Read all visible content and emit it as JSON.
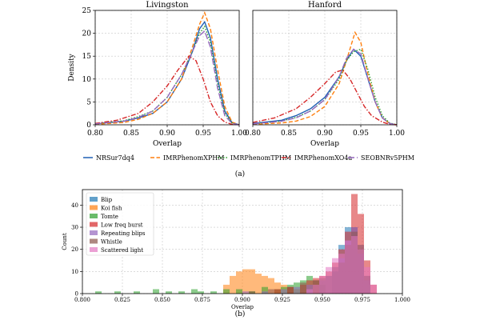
{
  "chart_data": [
    {
      "type": "line",
      "subplot": "Livingston",
      "title": "Livingston",
      "xlabel": "Overlap",
      "ylabel": "Density",
      "xlim": [
        0.8,
        1.0
      ],
      "ylim": [
        0,
        25
      ],
      "xticks": [
        "0.80",
        "0.85",
        "0.90",
        "0.95",
        "1.00"
      ],
      "yticks": [
        "0",
        "5",
        "10",
        "15",
        "20",
        "25"
      ],
      "grid": true,
      "series": [
        {
          "name": "NRSur7dq4",
          "color": "#1f5fb4",
          "dash": "",
          "x": [
            0.8,
            0.84,
            0.86,
            0.88,
            0.9,
            0.92,
            0.935,
            0.945,
            0.952,
            0.96,
            0.97,
            0.98,
            0.99,
            1.0
          ],
          "y": [
            0.2,
            0.8,
            1.5,
            2.5,
            5,
            10,
            16,
            21,
            22.5,
            19,
            10,
            3,
            0.5,
            0
          ]
        },
        {
          "name": "IMRPhenomXPHM",
          "color": "#ff7f0e",
          "dash": "5,2.5",
          "x": [
            0.8,
            0.84,
            0.86,
            0.88,
            0.9,
            0.92,
            0.935,
            0.945,
            0.952,
            0.96,
            0.97,
            0.98,
            0.99,
            1.0
          ],
          "y": [
            0.1,
            0.5,
            1.2,
            2.5,
            5,
            10,
            17,
            22,
            24.5,
            21,
            12,
            4,
            0.6,
            0
          ]
        },
        {
          "name": "IMRPhenomTPHM",
          "color": "#2ca02c",
          "dash": "1.5,2",
          "x": [
            0.8,
            0.84,
            0.86,
            0.88,
            0.9,
            0.92,
            0.935,
            0.945,
            0.952,
            0.96,
            0.97,
            0.98,
            0.99,
            1.0
          ],
          "y": [
            0.2,
            0.9,
            1.8,
            3,
            6,
            11,
            16,
            20,
            21.5,
            18,
            9,
            2.5,
            0.4,
            0
          ]
        },
        {
          "name": "IMRPhenomXO4a",
          "color": "#d62728",
          "dash": "6,2,1.5,2",
          "x": [
            0.8,
            0.83,
            0.86,
            0.88,
            0.9,
            0.915,
            0.93,
            0.94,
            0.95,
            0.96,
            0.97,
            0.98,
            0.99,
            1.0
          ],
          "y": [
            0.3,
            1,
            2.5,
            5,
            8.5,
            12,
            15,
            14,
            10,
            5,
            2,
            0.6,
            0.1,
            0
          ]
        },
        {
          "name": "SEOBNRv5PHM",
          "color": "#9467bd",
          "dash": "8,3",
          "x": [
            0.8,
            0.84,
            0.86,
            0.88,
            0.9,
            0.92,
            0.935,
            0.945,
            0.952,
            0.96,
            0.97,
            0.98,
            0.99,
            1.0
          ],
          "y": [
            0.2,
            0.8,
            1.6,
            3,
            6,
            11,
            16,
            19.5,
            20.5,
            17,
            8,
            2,
            0.3,
            0
          ]
        }
      ]
    },
    {
      "type": "line",
      "subplot": "Hanford",
      "title": "Hanford",
      "xlabel": "Overlap",
      "ylabel": "",
      "xlim": [
        0.8,
        1.0
      ],
      "ylim": [
        0,
        25
      ],
      "xticks": [
        "0.80",
        "0.85",
        "0.90",
        "0.95",
        "1.00"
      ],
      "yticks": [],
      "grid": true,
      "series": [
        {
          "name": "NRSur7dq4",
          "color": "#1f5fb4",
          "dash": "",
          "x": [
            0.8,
            0.84,
            0.86,
            0.88,
            0.9,
            0.92,
            0.93,
            0.94,
            0.95,
            0.96,
            0.97,
            0.98,
            0.99,
            1.0
          ],
          "y": [
            0.3,
            1,
            2,
            3.5,
            6,
            10.5,
            14,
            16.5,
            15,
            10,
            5,
            1.5,
            0.3,
            0
          ]
        },
        {
          "name": "IMRPhenomXPHM",
          "color": "#ff7f0e",
          "dash": "5,2.5",
          "x": [
            0.8,
            0.84,
            0.86,
            0.88,
            0.9,
            0.92,
            0.93,
            0.942,
            0.95,
            0.96,
            0.97,
            0.98,
            0.99,
            1.0
          ],
          "y": [
            0.1,
            0.4,
            0.8,
            1.8,
            4,
            9,
            14,
            20.2,
            18,
            11,
            5,
            1.5,
            0.3,
            0
          ]
        },
        {
          "name": "IMRPhenomTPHM",
          "color": "#2ca02c",
          "dash": "1.5,2",
          "x": [
            0.8,
            0.84,
            0.86,
            0.88,
            0.9,
            0.92,
            0.93,
            0.94,
            0.95,
            0.96,
            0.97,
            0.98,
            0.99,
            1.0
          ],
          "y": [
            0.2,
            0.8,
            1.6,
            3,
            5.5,
            10,
            14,
            16,
            16.5,
            12,
            6,
            2,
            0.4,
            0
          ]
        },
        {
          "name": "IMRPhenomXO4a",
          "color": "#d62728",
          "dash": "6,2,1.5,2",
          "x": [
            0.8,
            0.83,
            0.86,
            0.88,
            0.9,
            0.915,
            0.925,
            0.935,
            0.945,
            0.955,
            0.965,
            0.98,
            0.99,
            1.0
          ],
          "y": [
            0.5,
            1.5,
            3.5,
            6,
            9,
            11.5,
            12,
            10,
            7,
            4,
            2,
            0.6,
            0.1,
            0
          ]
        },
        {
          "name": "SEOBNRv5PHM",
          "color": "#9467bd",
          "dash": "8,3",
          "x": [
            0.8,
            0.84,
            0.86,
            0.88,
            0.9,
            0.92,
            0.93,
            0.94,
            0.95,
            0.96,
            0.97,
            0.98,
            0.99,
            1.0
          ],
          "y": [
            0.2,
            0.8,
            1.5,
            3,
            5.5,
            10.5,
            14.5,
            16.5,
            15.5,
            10,
            5,
            1.5,
            0.3,
            0
          ]
        }
      ]
    },
    {
      "type": "bar",
      "subplot": "histogram",
      "xlabel": "Overlap",
      "ylabel": "Count",
      "xlim": [
        0.8,
        1.0
      ],
      "ylim": [
        0,
        47
      ],
      "xticks": [
        "0.800",
        "0.825",
        "0.850",
        "0.875",
        "0.900",
        "0.925",
        "0.950",
        "0.975",
        "1.000"
      ],
      "yticks": [
        "0",
        "10",
        "20",
        "30",
        "40"
      ],
      "grid": true,
      "legend": "top-left",
      "bin_width": 0.004,
      "opacity": 0.55,
      "series": [
        {
          "name": "Blip",
          "color": "#1f77b4",
          "bin_starts": [
            0.956,
            0.96,
            0.964,
            0.968,
            0.972,
            0.976
          ],
          "values": [
            12,
            22,
            30,
            30,
            22,
            8
          ]
        },
        {
          "name": "Koi fish",
          "color": "#ff7f0e",
          "bin_starts": [
            0.888,
            0.892,
            0.896,
            0.9,
            0.904,
            0.908,
            0.912,
            0.916,
            0.92,
            0.924,
            0.928,
            0.932
          ],
          "values": [
            4,
            8,
            10,
            11,
            11,
            9,
            8,
            7,
            5,
            4,
            3,
            2
          ]
        },
        {
          "name": "Tomte",
          "color": "#2ca02c",
          "bin_starts": [
            0.808,
            0.82,
            0.832,
            0.844,
            0.852,
            0.86,
            0.868,
            0.872,
            0.88,
            0.888,
            0.896,
            0.904,
            0.912,
            0.92,
            0.924,
            0.928,
            0.932,
            0.936,
            0.94,
            0.944,
            0.948
          ],
          "values": [
            1,
            1,
            1,
            2,
            1,
            1,
            2,
            1,
            1,
            2,
            2,
            1,
            3,
            2,
            3,
            4,
            5,
            6,
            8,
            6,
            4
          ]
        },
        {
          "name": "Low freq burst",
          "color": "#d62728",
          "bin_starts": [
            0.92,
            0.928,
            0.936,
            0.94,
            0.944,
            0.948,
            0.952,
            0.956,
            0.96,
            0.964,
            0.968,
            0.972,
            0.976,
            0.98
          ],
          "values": [
            2,
            3,
            4,
            6,
            7,
            8,
            10,
            14,
            20,
            28,
            45,
            36,
            15,
            4
          ]
        },
        {
          "name": "Repeating blips",
          "color": "#9467bd",
          "bin_starts": [
            0.9,
            0.912,
            0.924,
            0.932,
            0.94,
            0.948,
            0.952,
            0.956,
            0.96,
            0.964,
            0.968,
            0.972,
            0.976
          ],
          "values": [
            1,
            1,
            2,
            3,
            4,
            6,
            8,
            10,
            16,
            24,
            30,
            18,
            6
          ]
        },
        {
          "name": "Whistle",
          "color": "#8c564b",
          "bin_starts": [
            0.904,
            0.916,
            0.928,
            0.936,
            0.944,
            0.948,
            0.952,
            0.956,
            0.96,
            0.964,
            0.968,
            0.972,
            0.976
          ],
          "values": [
            1,
            2,
            3,
            5,
            6,
            7,
            8,
            10,
            14,
            22,
            28,
            20,
            8
          ]
        },
        {
          "name": "Scattered light",
          "color": "#e377c2",
          "bin_starts": [
            0.94,
            0.944,
            0.948,
            0.952,
            0.956,
            0.96,
            0.964,
            0.968,
            0.972,
            0.976,
            0.98
          ],
          "values": [
            2,
            4,
            8,
            12,
            16,
            18,
            24,
            26,
            20,
            12,
            4
          ]
        }
      ]
    }
  ],
  "captions": {
    "top": "(a)",
    "bottom": "(b)"
  }
}
